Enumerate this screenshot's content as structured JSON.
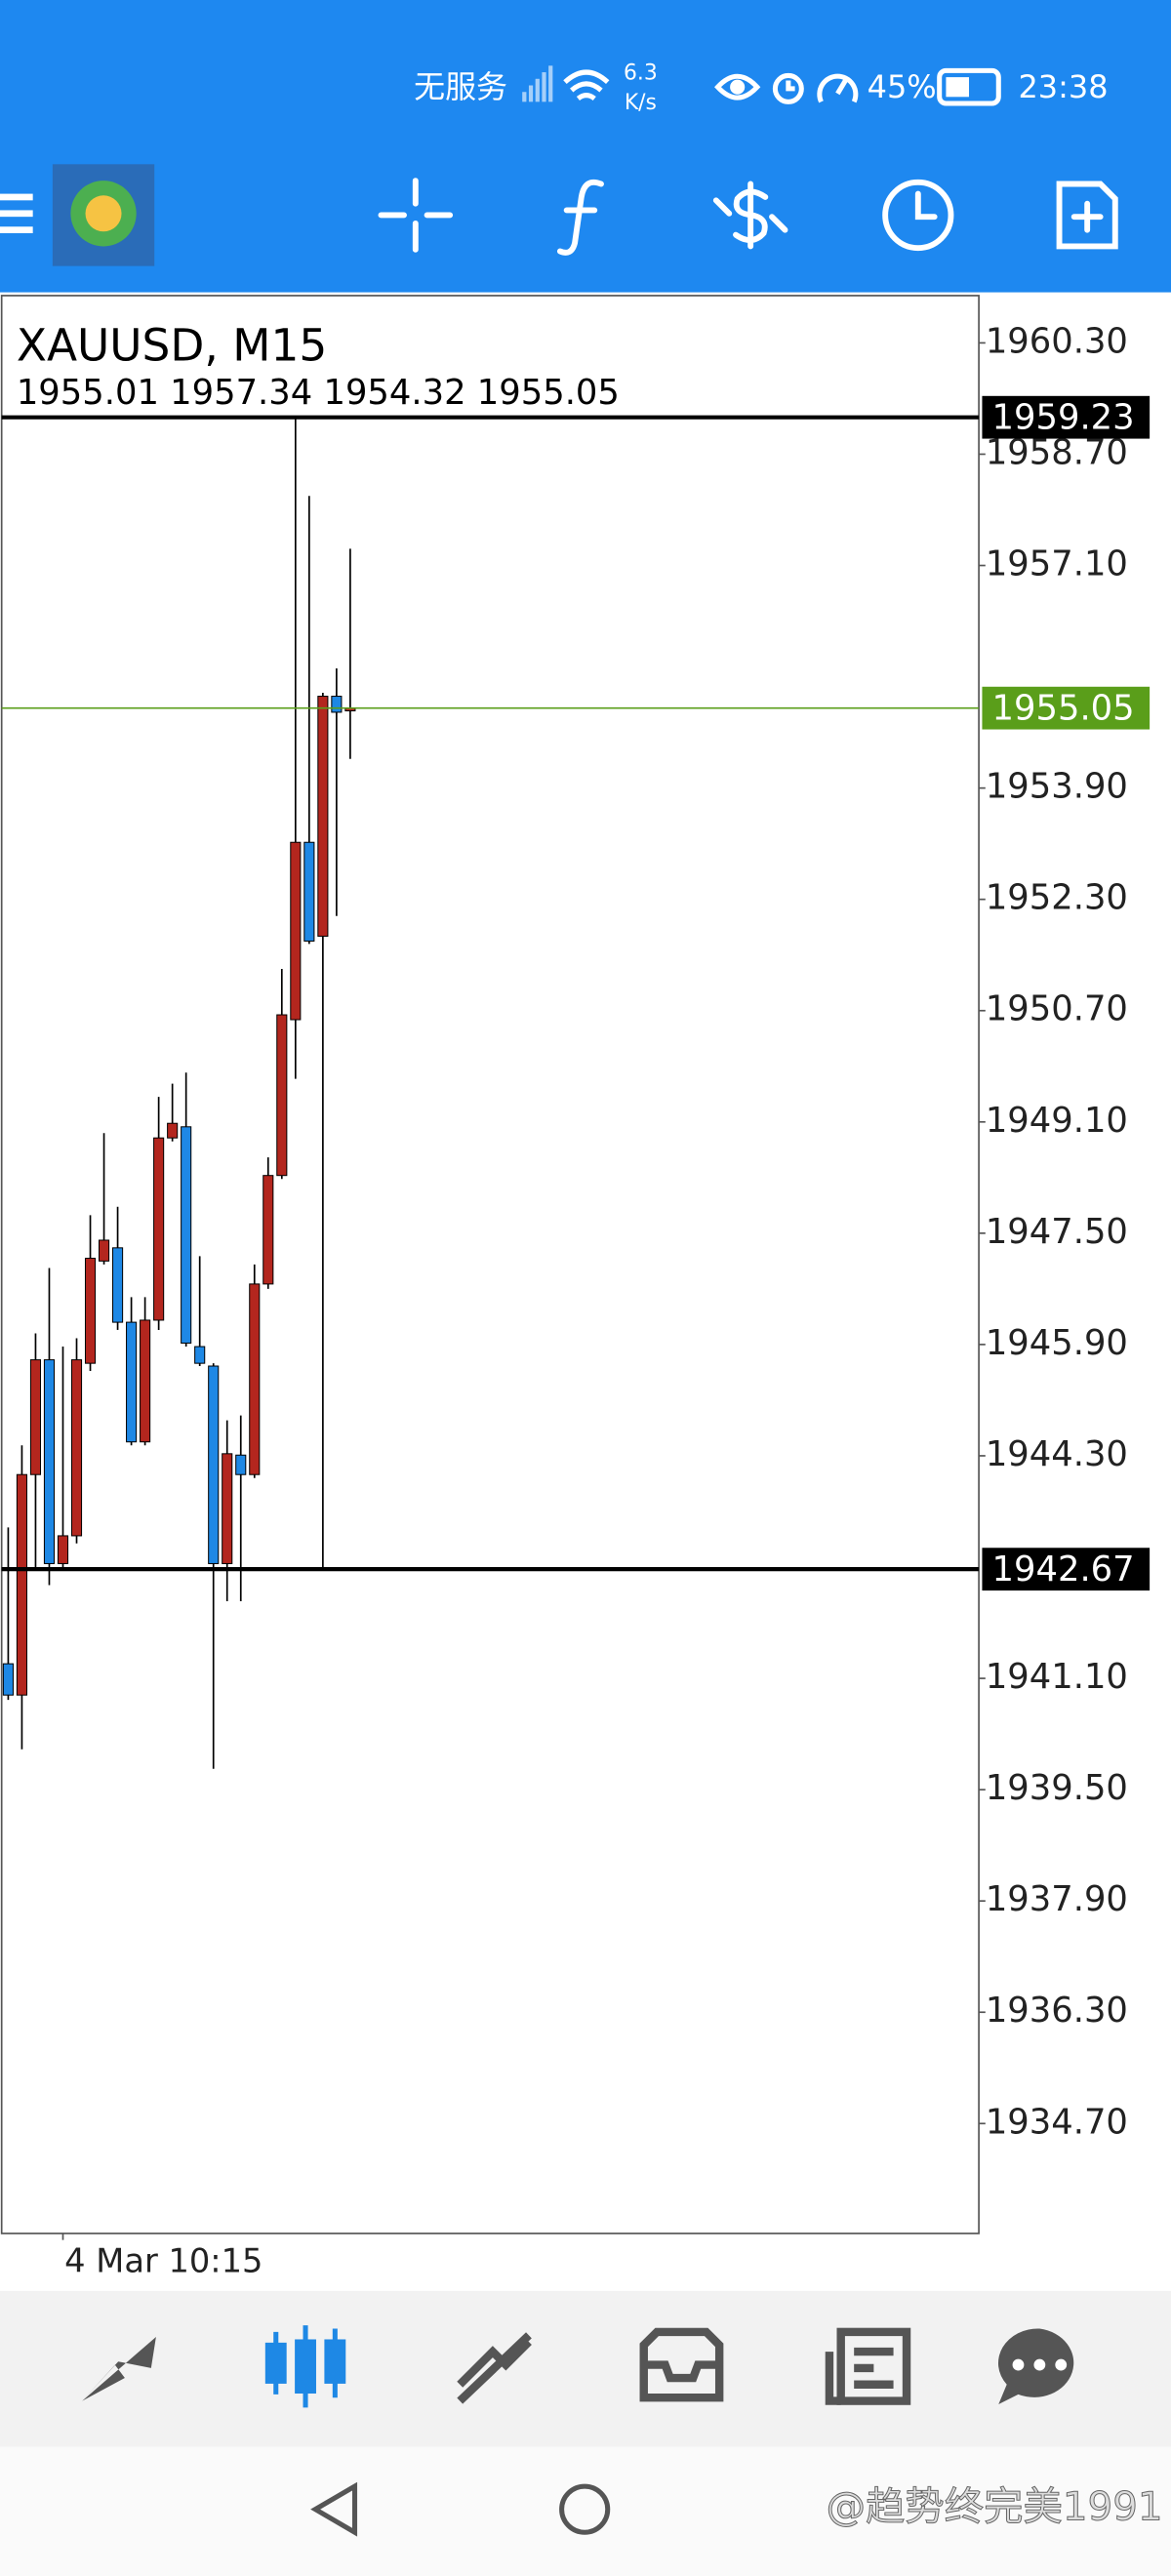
{
  "status_bar": {
    "carrier": "无服务",
    "speed": "6.3",
    "speed_unit": "K/s",
    "battery": "45%",
    "time": "23:38"
  },
  "chart_data": {
    "type": "candlestick",
    "title": "XAUUSD, M15",
    "subtitle": "1955.01 1957.34 1954.32 1955.05",
    "categories": [
      null,
      null,
      null,
      null,
      "4 Mar 10:15",
      null,
      null,
      null,
      null,
      null,
      null,
      null,
      null,
      null,
      null,
      null,
      null,
      null,
      null,
      null,
      null,
      null,
      null,
      null,
      null,
      null
    ],
    "open": [
      1941.31,
      1940.86,
      1944.03,
      1945.68,
      1942.75,
      1943.15,
      1945.63,
      1947.1,
      1947.29,
      1946.22,
      1944.5,
      1946.25,
      1948.87,
      1949.03,
      1945.87,
      1945.59,
      1942.75,
      1944.31,
      1944.03,
      1946.77,
      1948.33,
      1950.57,
      1953.12,
      1951.77,
      1955.22,
      1955.01
    ],
    "high": [
      1943.27,
      1944.45,
      1946.06,
      1947.0,
      1945.87,
      1945.99,
      1947.76,
      1948.94,
      1947.88,
      1946.58,
      1946.58,
      1949.46,
      1949.65,
      1949.81,
      1947.17,
      1945.63,
      1944.81,
      1944.88,
      1947.05,
      1948.59,
      1951.3,
      1959.23,
      1958.1,
      1955.27,
      1955.62,
      1957.34
    ],
    "low": [
      1940.79,
      1940.08,
      1942.68,
      1942.44,
      1942.68,
      1943.04,
      1945.52,
      1947.05,
      1946.11,
      1944.45,
      1944.45,
      1946.11,
      1948.82,
      1945.87,
      1945.59,
      1939.8,
      1942.21,
      1942.21,
      1943.98,
      1946.7,
      1948.28,
      1949.72,
      1951.66,
      1942.67,
      1952.06,
      1954.32
    ],
    "close": [
      1940.86,
      1944.03,
      1945.68,
      1942.75,
      1943.15,
      1945.68,
      1947.14,
      1947.4,
      1946.22,
      1944.5,
      1946.25,
      1948.87,
      1949.08,
      1945.92,
      1945.63,
      1942.75,
      1944.33,
      1944.03,
      1946.77,
      1948.33,
      1950.64,
      1953.12,
      1951.7,
      1955.22,
      1954.99,
      1955.05
    ],
    "up_color": "#b3261e",
    "down_color": "#1e88e5",
    "ylim": [
      1933.12,
      1960.98
    ],
    "yticks": [
      {
        "value": 1960.3,
        "label": "1960.30"
      },
      {
        "value": 1958.7,
        "label": "1958.70"
      },
      {
        "value": 1957.1,
        "label": "1957.10"
      },
      {
        "value": 1953.9,
        "label": "1953.90"
      },
      {
        "value": 1952.3,
        "label": "1952.30"
      },
      {
        "value": 1950.7,
        "label": "1950.70"
      },
      {
        "value": 1949.1,
        "label": "1949.10"
      },
      {
        "value": 1947.5,
        "label": "1947.50"
      },
      {
        "value": 1945.9,
        "label": "1945.90"
      },
      {
        "value": 1944.3,
        "label": "1944.30"
      },
      {
        "value": 1941.1,
        "label": "1941.10"
      },
      {
        "value": 1939.5,
        "label": "1939.50"
      },
      {
        "value": 1937.9,
        "label": "1937.90"
      },
      {
        "value": 1936.3,
        "label": "1936.30"
      },
      {
        "value": 1934.7,
        "label": "1934.70"
      }
    ],
    "price_lines": [
      {
        "value": 1959.23,
        "label": "1959.23",
        "color": "#000000"
      },
      {
        "value": 1955.05,
        "label": "1955.05",
        "color": "#5a9e1a"
      },
      {
        "value": 1942.67,
        "label": "1942.67",
        "color": "#000000"
      }
    ]
  },
  "watermark": "@趋势终完美1991"
}
